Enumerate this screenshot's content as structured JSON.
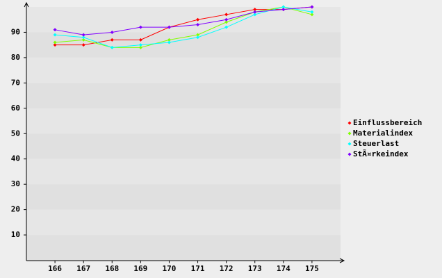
{
  "chart_data": {
    "type": "line",
    "x": [
      166,
      167,
      168,
      169,
      170,
      171,
      172,
      173,
      174,
      175
    ],
    "xlim": [
      165,
      176
    ],
    "xticks": [
      166,
      167,
      168,
      169,
      170,
      171,
      172,
      173,
      174,
      175
    ],
    "ylim": [
      0,
      100
    ],
    "yticks": [
      10,
      20,
      30,
      40,
      50,
      60,
      70,
      80,
      90
    ],
    "series": [
      {
        "name": "Einflussbereich",
        "color": "#ff0000",
        "values": [
          85,
          85,
          87,
          87,
          92,
          95,
          97,
          99,
          99,
          100
        ]
      },
      {
        "name": "Materialindex",
        "color": "#80ff00",
        "values": [
          86,
          87,
          84,
          84,
          87,
          89,
          94,
          98,
          100,
          97
        ]
      },
      {
        "name": "Steuerlast",
        "color": "#00ffff",
        "values": [
          89,
          88,
          84,
          85,
          86,
          88,
          92,
          97,
          100,
          98
        ]
      },
      {
        "name": "StÃ¤rkeindex",
        "color": "#8000ff",
        "values": [
          91,
          89,
          90,
          92,
          92,
          93,
          95,
          98,
          99,
          100
        ]
      }
    ]
  }
}
